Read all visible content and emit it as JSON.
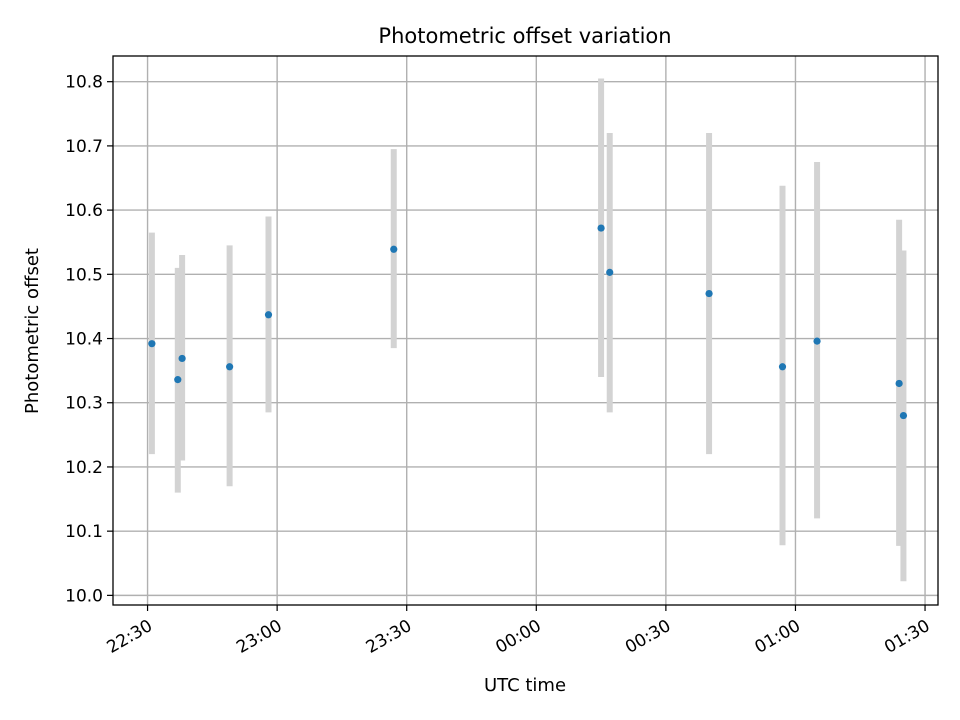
{
  "chart_data": {
    "type": "scatter",
    "title": "Photometric offset variation",
    "xlabel": "UTC time",
    "ylabel": "Photometric offset",
    "x_axis": {
      "kind": "time",
      "range": [
        "22:22",
        "01:33"
      ],
      "ticks": [
        "22:30",
        "23:00",
        "23:30",
        "00:00",
        "00:30",
        "01:00",
        "01:30"
      ]
    },
    "y_axis": {
      "range": [
        9.985,
        10.84
      ],
      "ticks": [
        "10.0",
        "10.1",
        "10.2",
        "10.3",
        "10.4",
        "10.5",
        "10.6",
        "10.7",
        "10.8"
      ]
    },
    "grid": true,
    "colors": {
      "point": "#1f77b4",
      "errorbar": "#d3d3d3",
      "grid": "#b0b0b0"
    },
    "points": [
      {
        "x": "22:31",
        "y": 10.392,
        "low": 10.22,
        "high": 10.565
      },
      {
        "x": "22:37",
        "y": 10.336,
        "low": 10.16,
        "high": 10.51
      },
      {
        "x": "22:38",
        "y": 10.369,
        "low": 10.21,
        "high": 10.53
      },
      {
        "x": "22:49",
        "y": 10.356,
        "low": 10.17,
        "high": 10.545
      },
      {
        "x": "22:58",
        "y": 10.437,
        "low": 10.285,
        "high": 10.59
      },
      {
        "x": "23:27",
        "y": 10.539,
        "low": 10.385,
        "high": 10.695
      },
      {
        "x": "00:15",
        "y": 10.572,
        "low": 10.34,
        "high": 10.805
      },
      {
        "x": "00:17",
        "y": 10.503,
        "low": 10.285,
        "high": 10.72
      },
      {
        "x": "00:40",
        "y": 10.47,
        "low": 10.22,
        "high": 10.72
      },
      {
        "x": "00:57",
        "y": 10.356,
        "low": 10.078,
        "high": 10.638
      },
      {
        "x": "01:05",
        "y": 10.396,
        "low": 10.12,
        "high": 10.675
      },
      {
        "x": "01:24",
        "y": 10.33,
        "low": 10.077,
        "high": 10.585
      },
      {
        "x": "01:25",
        "y": 10.28,
        "low": 10.022,
        "high": 10.537
      }
    ]
  }
}
